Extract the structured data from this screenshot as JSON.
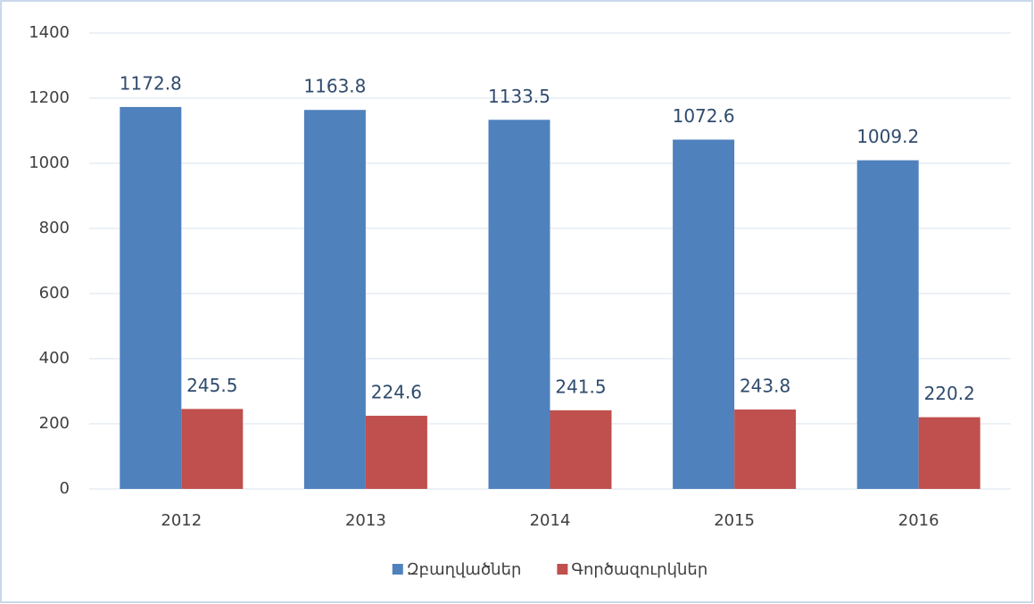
{
  "chart_data": {
    "type": "bar",
    "categories": [
      "2012",
      "2013",
      "2014",
      "2015",
      "2016"
    ],
    "series": [
      {
        "name": "Զբաղվածներ",
        "color": "#4f81bd",
        "values": [
          1172.8,
          1163.8,
          1133.5,
          1072.6,
          1009.2
        ]
      },
      {
        "name": "Գործազուրկներ",
        "color": "#c0504d",
        "values": [
          245.5,
          224.6,
          241.5,
          243.8,
          220.2
        ]
      }
    ],
    "ylim": [
      0,
      1400
    ],
    "yticks": [
      0,
      200,
      400,
      600,
      800,
      1000,
      1200,
      1400
    ],
    "grid": true,
    "legend": "bottom"
  }
}
